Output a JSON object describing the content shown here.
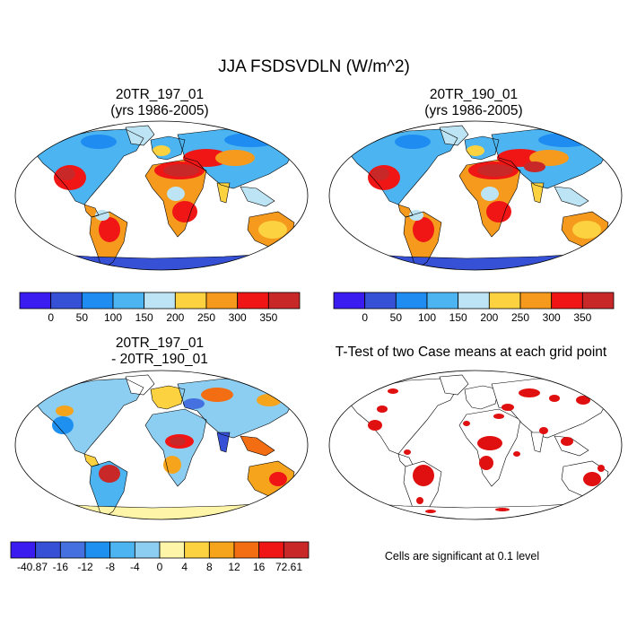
{
  "figure": {
    "title": "JJA FSDSVDLN (W/m^2)"
  },
  "panels": {
    "top_left": {
      "title_line1": "20TR_197_01",
      "title_line2": "(yrs 1986-2005)"
    },
    "top_right": {
      "title_line1": "20TR_190_01",
      "title_line2": "(yrs 1986-2005)"
    },
    "bottom_left": {
      "title_line1": "20TR_197_01",
      "title_line2": "- 20TR_190_01"
    },
    "bottom_right": {
      "title": "T-Test of two Case means at each grid point",
      "note": "Cells are significant at 0.1 level"
    }
  },
  "colorbars": {
    "absolute": {
      "colors": [
        "#3a1cf0",
        "#3650d6",
        "#1e8cf0",
        "#4cb4f0",
        "#bde4f4",
        "#fcd240",
        "#f59a1c",
        "#f01616",
        "#c82828"
      ],
      "labels": [
        "0",
        "50",
        "100",
        "150",
        "200",
        "250",
        "300",
        "350"
      ]
    },
    "difference": {
      "colors": [
        "#3a1cf0",
        "#3650d6",
        "#4470e0",
        "#1e90f0",
        "#4cb4f0",
        "#8ccdf2",
        "#fff5a8",
        "#fcd240",
        "#f5a41c",
        "#f36d12",
        "#f01616",
        "#c82828"
      ],
      "labels": [
        "-40.87",
        "-16",
        "-12",
        "-8",
        "-4",
        "0",
        "4",
        "8",
        "12",
        "16",
        "72.61"
      ]
    }
  },
  "chart_data": [
    {
      "type": "heatmap",
      "title": "20TR_197_01 (yrs 1986-2005)",
      "variable": "FSDSVDLN",
      "units": "W/m^2",
      "season": "JJA",
      "projection": "Robinson",
      "contour_levels": [
        0,
        50,
        100,
        150,
        200,
        250,
        300,
        350
      ]
    },
    {
      "type": "heatmap",
      "title": "20TR_190_01 (yrs 1986-2005)",
      "variable": "FSDSVDLN",
      "units": "W/m^2",
      "season": "JJA",
      "projection": "Robinson",
      "contour_levels": [
        0,
        50,
        100,
        150,
        200,
        250,
        300,
        350
      ]
    },
    {
      "type": "heatmap",
      "title": "20TR_197_01 - 20TR_190_01",
      "variable": "FSDSVDLN difference",
      "units": "W/m^2",
      "projection": "Robinson",
      "min": -40.87,
      "max": 72.61,
      "contour_levels": [
        -16,
        -12,
        -8,
        -4,
        0,
        4,
        8,
        12,
        16
      ]
    },
    {
      "type": "heatmap",
      "title": "T-Test of two Case means at each grid point",
      "significance_level": 0.1,
      "legend_note": "Cells are significant at 0.1 level"
    }
  ]
}
